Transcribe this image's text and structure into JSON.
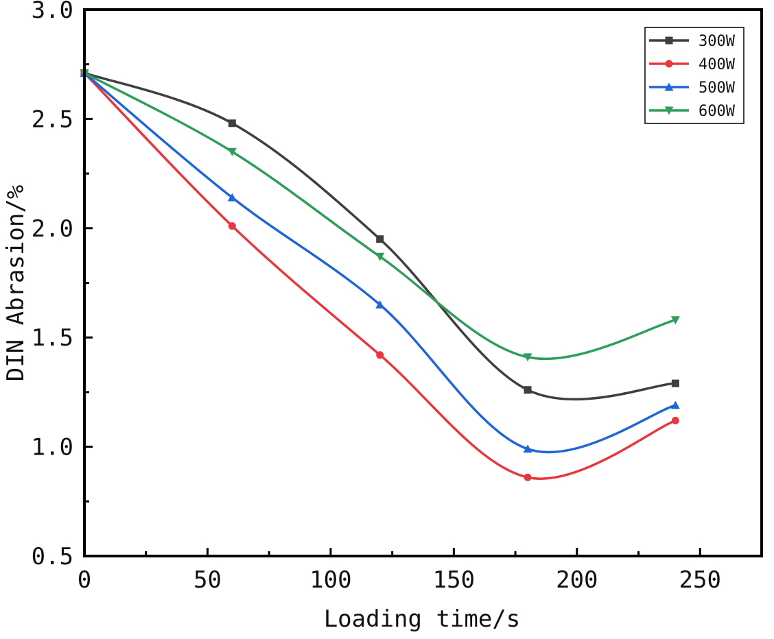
{
  "chart_data": {
    "type": "line",
    "xlabel": "Loading time/s",
    "ylabel": "DIN Abrasion/%",
    "xlim": [
      0,
      275
    ],
    "ylim": [
      0.5,
      3.0
    ],
    "x_ticks": [
      0,
      50,
      100,
      150,
      200,
      250
    ],
    "x_tick_labels": [
      "0",
      "50",
      "100",
      "150",
      "200",
      "250"
    ],
    "y_ticks": [
      0.5,
      1.0,
      1.5,
      2.0,
      2.5,
      3.0
    ],
    "y_tick_labels": [
      "0.5",
      "1.0",
      "1.5",
      "2.0",
      "2.5",
      "3.0"
    ],
    "x": [
      0,
      60,
      120,
      180,
      240
    ],
    "legend_position": "top-right",
    "series": [
      {
        "name": "300W",
        "color": "#3f3f3f",
        "marker": "square",
        "values": [
          2.71,
          2.48,
          1.95,
          1.26,
          1.29
        ]
      },
      {
        "name": "400W",
        "color": "#e8383d",
        "marker": "circle",
        "values": [
          2.71,
          2.01,
          1.42,
          0.86,
          1.12
        ]
      },
      {
        "name": "500W",
        "color": "#1f66d6",
        "marker": "triangle-up",
        "values": [
          2.71,
          2.14,
          1.65,
          0.99,
          1.19
        ]
      },
      {
        "name": "600W",
        "color": "#2f9e5b",
        "marker": "triangle-down",
        "values": [
          2.71,
          2.35,
          1.87,
          1.41,
          1.58
        ]
      }
    ]
  }
}
